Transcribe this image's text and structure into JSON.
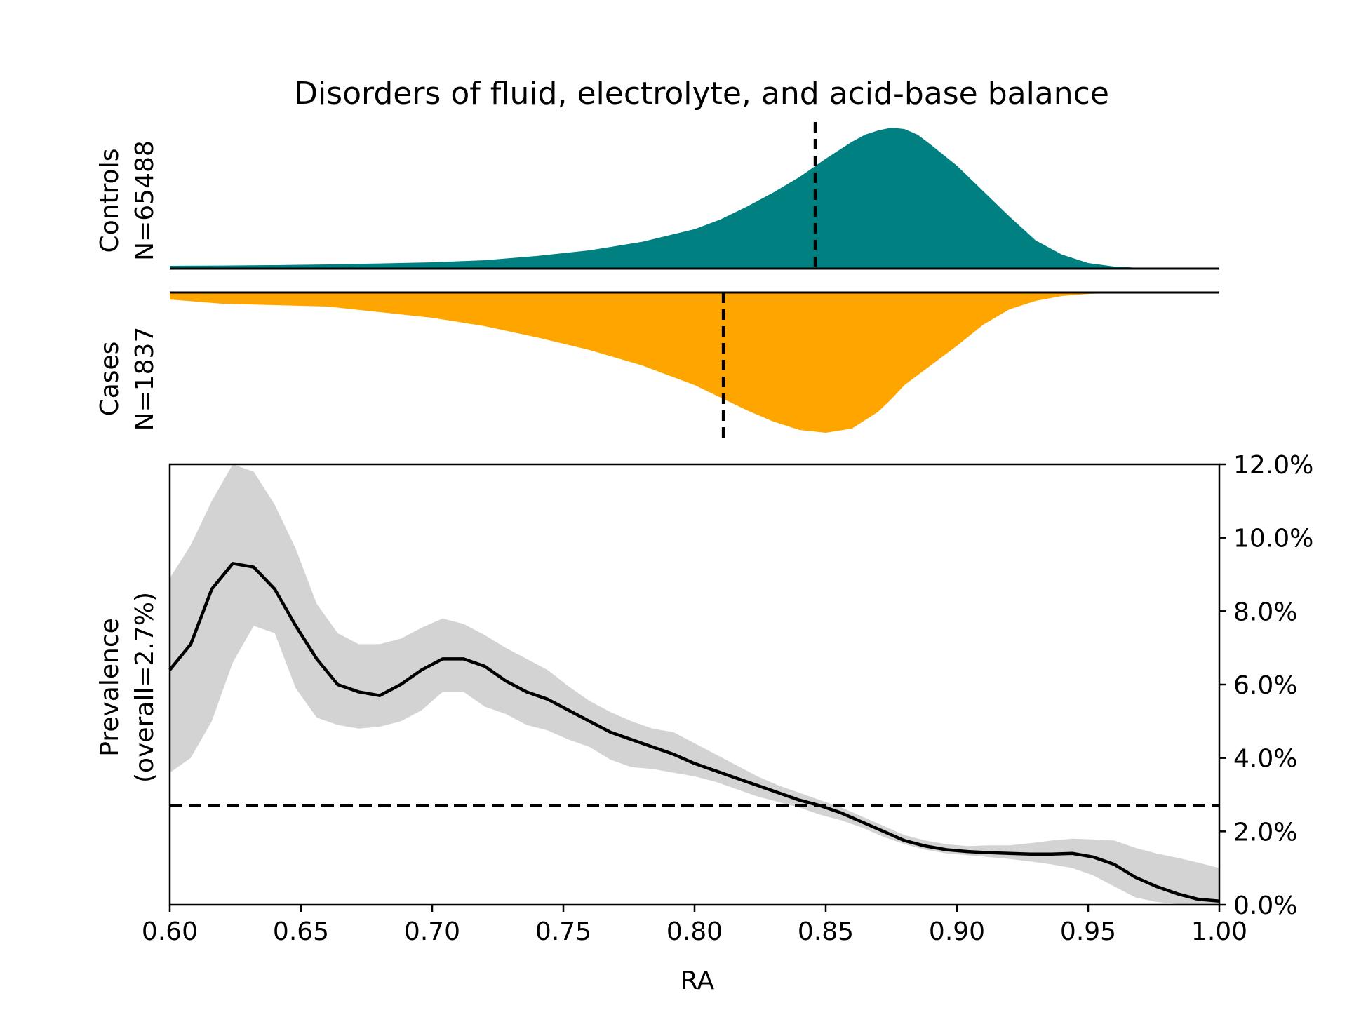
{
  "chart_data": {
    "title": "Disorders of fluid, electrolyte, and acid-base balance",
    "colors": {
      "controls": "#008080",
      "cases": "#ffa500",
      "ci_band": "#d3d3d3",
      "line": "#000000"
    },
    "panels": [
      {
        "id": "controls",
        "type": "area",
        "label_line1": "Controls",
        "label_line2": "N=65488",
        "median_ra": 0.846,
        "x": [
          0.6,
          0.62,
          0.64,
          0.66,
          0.68,
          0.7,
          0.72,
          0.74,
          0.76,
          0.78,
          0.8,
          0.81,
          0.82,
          0.83,
          0.84,
          0.85,
          0.86,
          0.865,
          0.87,
          0.875,
          0.88,
          0.885,
          0.89,
          0.9,
          0.91,
          0.92,
          0.93,
          0.94,
          0.95,
          0.96,
          0.97,
          0.98,
          1.0
        ],
        "density": [
          0.02,
          0.022,
          0.025,
          0.03,
          0.037,
          0.045,
          0.06,
          0.09,
          0.13,
          0.19,
          0.28,
          0.35,
          0.44,
          0.54,
          0.65,
          0.78,
          0.9,
          0.95,
          0.98,
          1.0,
          0.99,
          0.95,
          0.88,
          0.73,
          0.55,
          0.37,
          0.2,
          0.1,
          0.04,
          0.015,
          0.005,
          0.002,
          0.0
        ]
      },
      {
        "id": "cases",
        "type": "area",
        "label_line1": "Cases",
        "label_line2": "N=1837",
        "median_ra": 0.811,
        "x": [
          0.6,
          0.62,
          0.64,
          0.66,
          0.68,
          0.7,
          0.72,
          0.74,
          0.76,
          0.78,
          0.8,
          0.81,
          0.82,
          0.83,
          0.84,
          0.85,
          0.86,
          0.87,
          0.875,
          0.88,
          0.89,
          0.9,
          0.91,
          0.92,
          0.93,
          0.94,
          0.95,
          0.96,
          0.97,
          0.98,
          1.0
        ],
        "density": [
          0.05,
          0.08,
          0.09,
          0.1,
          0.14,
          0.18,
          0.24,
          0.32,
          0.41,
          0.52,
          0.66,
          0.75,
          0.84,
          0.92,
          0.98,
          1.0,
          0.97,
          0.85,
          0.76,
          0.66,
          0.52,
          0.38,
          0.23,
          0.12,
          0.06,
          0.025,
          0.01,
          0.005,
          0.002,
          0.001,
          0.0
        ]
      }
    ],
    "prevalence": {
      "type": "line",
      "ylabel_line1": "Prevalence",
      "ylabel_line2": "(overall=2.7%)",
      "xlabel": "RA",
      "overall": 2.7,
      "xlim": [
        0.6,
        1.0
      ],
      "ylim": [
        0,
        12
      ],
      "xticks": [
        "0.60",
        "0.65",
        "0.70",
        "0.75",
        "0.80",
        "0.85",
        "0.90",
        "0.95",
        "1.00"
      ],
      "yticks": [
        "0.0%",
        "2.0%",
        "4.0%",
        "6.0%",
        "8.0%",
        "10.0%",
        "12.0%"
      ],
      "x": [
        0.6,
        0.608,
        0.616,
        0.624,
        0.632,
        0.64,
        0.648,
        0.656,
        0.664,
        0.672,
        0.68,
        0.688,
        0.696,
        0.704,
        0.712,
        0.72,
        0.728,
        0.736,
        0.744,
        0.752,
        0.76,
        0.768,
        0.776,
        0.784,
        0.792,
        0.8,
        0.808,
        0.816,
        0.824,
        0.832,
        0.84,
        0.848,
        0.856,
        0.864,
        0.872,
        0.88,
        0.888,
        0.896,
        0.904,
        0.912,
        0.92,
        0.928,
        0.936,
        0.944,
        0.952,
        0.96,
        0.968,
        0.976,
        0.984,
        0.992,
        1.0
      ],
      "y": [
        6.4,
        7.1,
        8.6,
        9.3,
        9.2,
        8.6,
        7.6,
        6.7,
        6.0,
        5.8,
        5.7,
        6.0,
        6.4,
        6.7,
        6.7,
        6.5,
        6.1,
        5.8,
        5.6,
        5.3,
        5.0,
        4.7,
        4.5,
        4.3,
        4.1,
        3.85,
        3.65,
        3.45,
        3.25,
        3.05,
        2.85,
        2.7,
        2.5,
        2.25,
        2.0,
        1.75,
        1.6,
        1.5,
        1.45,
        1.42,
        1.4,
        1.38,
        1.38,
        1.4,
        1.3,
        1.1,
        0.75,
        0.5,
        0.3,
        0.15,
        0.1
      ],
      "ci_lower": [
        3.6,
        4.0,
        5.0,
        6.6,
        7.6,
        7.4,
        5.9,
        5.1,
        4.9,
        4.8,
        4.85,
        5.0,
        5.3,
        5.8,
        5.8,
        5.4,
        5.2,
        4.9,
        4.75,
        4.5,
        4.3,
        3.95,
        3.75,
        3.7,
        3.6,
        3.5,
        3.35,
        3.15,
        2.95,
        2.8,
        2.65,
        2.45,
        2.3,
        2.1,
        1.85,
        1.65,
        1.5,
        1.4,
        1.35,
        1.3,
        1.25,
        1.18,
        1.1,
        1.0,
        0.8,
        0.5,
        0.2,
        0.08,
        0.02,
        0.0,
        0.0
      ],
      "ci_upper": [
        8.9,
        9.8,
        11.0,
        12.0,
        11.8,
        10.9,
        9.7,
        8.2,
        7.4,
        7.1,
        7.1,
        7.25,
        7.55,
        7.8,
        7.65,
        7.35,
        7.0,
        6.7,
        6.4,
        5.95,
        5.55,
        5.25,
        5.0,
        4.8,
        4.7,
        4.4,
        4.1,
        3.8,
        3.5,
        3.25,
        3.05,
        2.85,
        2.65,
        2.4,
        2.15,
        1.9,
        1.75,
        1.65,
        1.6,
        1.62,
        1.62,
        1.68,
        1.75,
        1.8,
        1.78,
        1.75,
        1.55,
        1.4,
        1.28,
        1.15,
        1.0
      ]
    }
  }
}
